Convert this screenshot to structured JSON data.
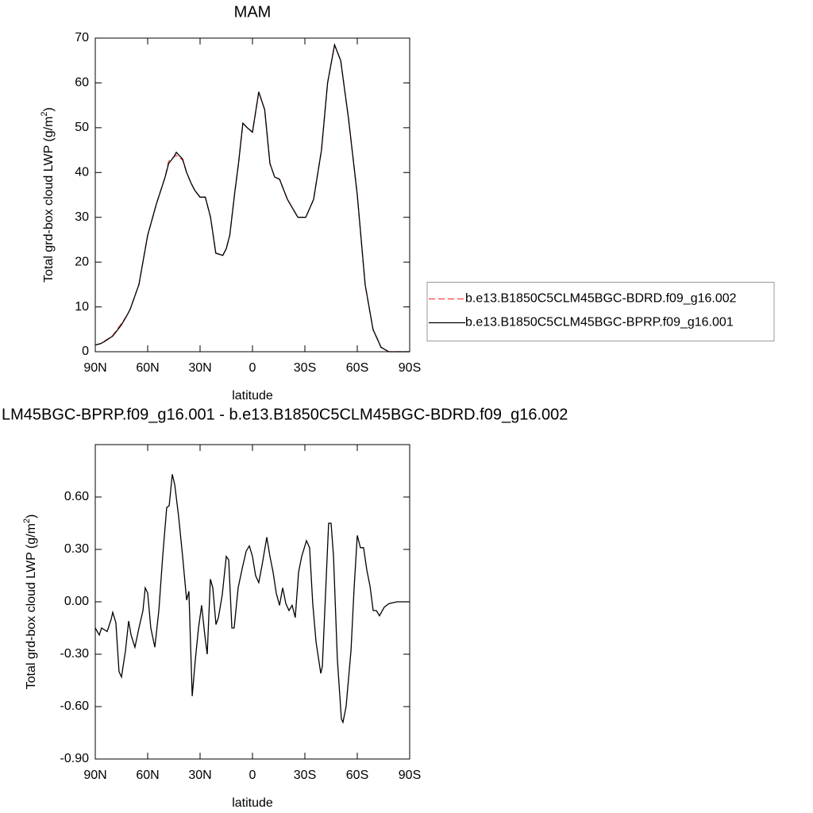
{
  "chart_data": [
    {
      "type": "line",
      "title": "MAM",
      "xlabel": "latitude",
      "ylabel": "Total grd-box cloud LWP (g/m",
      "ylabel_sup": "2",
      "ylabel_end": ")",
      "xlim": [
        90,
        -90
      ],
      "ylim": [
        0,
        70
      ],
      "xticks": [
        {
          "value": 90,
          "label": "90N"
        },
        {
          "value": 60,
          "label": "60N"
        },
        {
          "value": 30,
          "label": "30N"
        },
        0,
        {
          "value": -30,
          "label": "30S"
        },
        {
          "value": -60,
          "label": "60S"
        },
        {
          "value": -90,
          "label": "90S"
        }
      ],
      "yticks": [
        0,
        10,
        20,
        30,
        40,
        50,
        60,
        70
      ],
      "legend": "right",
      "x": [
        90,
        87,
        85,
        80,
        75,
        72,
        70,
        65,
        60,
        55,
        50,
        48,
        45,
        43.6,
        40,
        37.7,
        35,
        33,
        30,
        27,
        24,
        21,
        17,
        15,
        13,
        10,
        8,
        5.5,
        3,
        0,
        -3.6,
        -7,
        -10,
        -12.7,
        -15.5,
        -20,
        -26,
        -30.5,
        -35,
        -39.5,
        -43,
        -47,
        -50.5,
        -55,
        -60,
        -64.5,
        -69,
        -73.6,
        -78,
        -82,
        -90
      ],
      "series": [
        {
          "name": "b.e13.B1850C5CLM45BGC-BDRD.f09_g16.002",
          "color": "#ff4040",
          "dash": "dashed",
          "values": [
            1.5,
            1.8,
            2.3,
            3.6,
            6.3,
            8,
            9.5,
            15,
            26,
            33,
            39,
            42.5,
            43.5,
            43.8,
            42.8,
            40,
            37.5,
            36,
            34.5,
            34.5,
            30,
            22,
            21.5,
            23,
            26,
            36,
            42,
            51,
            50,
            49,
            58,
            54,
            42,
            39,
            38.5,
            34,
            30,
            30,
            34,
            45,
            60,
            68.5,
            65,
            52,
            35,
            15,
            5,
            1,
            0,
            0,
            0
          ]
        },
        {
          "name": "b.e13.B1850C5CLM45BGC-BPRP.f09_g16.001",
          "color": "#000000",
          "dash": "solid",
          "values": [
            1.5,
            1.8,
            2.2,
            3.5,
            6,
            8,
            9.5,
            15,
            26,
            33,
            39,
            42,
            43.5,
            44.5,
            43,
            40,
            37.5,
            36,
            34.5,
            34.5,
            30,
            22,
            21.5,
            23,
            26,
            36,
            42,
            51,
            50,
            49,
            58,
            54,
            42,
            39,
            38.5,
            34,
            30,
            30,
            34,
            45,
            60,
            68.5,
            65,
            52,
            35,
            15,
            5,
            1,
            0,
            0,
            0
          ]
        }
      ]
    },
    {
      "type": "line",
      "title": "LM45BGC-BPRP.f09_g16.001 - b.e13.B1850C5CLM45BGC-BDRD.f09_g16.002",
      "xlabel": "latitude",
      "ylabel": "Total grd-box cloud LWP (g/m",
      "ylabel_sup": "2",
      "ylabel_end": ")",
      "xlim": [
        90,
        -90
      ],
      "ylim": [
        -0.9,
        0.9
      ],
      "xticks": [
        {
          "value": 90,
          "label": "90N"
        },
        {
          "value": 60,
          "label": "60N"
        },
        {
          "value": 30,
          "label": "30N"
        },
        0,
        {
          "value": -30,
          "label": "30S"
        },
        {
          "value": -60,
          "label": "60S"
        },
        {
          "value": -90,
          "label": "90S"
        }
      ],
      "yticks": [
        {
          "value": -0.9,
          "label": "-0.90"
        },
        {
          "value": -0.6,
          "label": "-0.60"
        },
        {
          "value": -0.3,
          "label": "-0.30"
        },
        {
          "value": 0,
          "label": "0.00"
        },
        {
          "value": 0.3,
          "label": "0.30"
        },
        {
          "value": 0.6,
          "label": "0.60"
        }
      ],
      "x": [
        90,
        87.7,
        86.4,
        83.2,
        80.9,
        80,
        78.2,
        76.4,
        75,
        72.7,
        70.9,
        69.5,
        67.3,
        65,
        62.7,
        61.4,
        60,
        58.2,
        55.9,
        53.6,
        51.4,
        49.1,
        47.7,
        45.9,
        44.5,
        42.3,
        40,
        37.7,
        36.4,
        34.5,
        32.7,
        30.9,
        29.1,
        27.3,
        25.9,
        24.1,
        22.7,
        20.9,
        19.5,
        17.3,
        15,
        13.6,
        11.8,
        10.5,
        8.2,
        5.9,
        3.6,
        1.8,
        0,
        -1.8,
        -3.6,
        -5.5,
        -8.2,
        -10,
        -11.8,
        -13.6,
        -15.5,
        -17.3,
        -19.1,
        -20.9,
        -22.7,
        -24.5,
        -26.4,
        -28.2,
        -30.9,
        -32.7,
        -34.5,
        -36.4,
        -39.1,
        -40,
        -41.8,
        -43.6,
        -45,
        -46.4,
        -48.6,
        -50.9,
        -51.8,
        -53.6,
        -56.4,
        -58.2,
        -60,
        -61.8,
        -63.6,
        -65.5,
        -67.3,
        -69.1,
        -70.9,
        -72.7,
        -75.5,
        -78.2,
        -82.7,
        -90
      ],
      "series": [
        {
          "color": "#000000",
          "dash": "solid",
          "values": [
            -0.15,
            -0.19,
            -0.15,
            -0.17,
            -0.1,
            -0.06,
            -0.12,
            -0.4,
            -0.43,
            -0.28,
            -0.11,
            -0.19,
            -0.26,
            -0.15,
            -0.05,
            0.08,
            0.05,
            -0.15,
            -0.26,
            -0.05,
            0.26,
            0.54,
            0.55,
            0.73,
            0.67,
            0.49,
            0.26,
            0.01,
            0.06,
            -0.54,
            -0.33,
            -0.15,
            -0.02,
            -0.19,
            -0.3,
            0.13,
            0.08,
            -0.13,
            -0.09,
            0.04,
            0.26,
            0.24,
            -0.15,
            -0.15,
            0.08,
            0.19,
            0.29,
            0.32,
            0.26,
            0.15,
            0.11,
            0.21,
            0.37,
            0.26,
            0.17,
            0.05,
            -0.02,
            0.08,
            -0.01,
            -0.05,
            -0.02,
            -0.09,
            0.17,
            0.26,
            0.35,
            0.31,
            -0.01,
            -0.23,
            -0.41,
            -0.37,
            0.04,
            0.45,
            0.45,
            0.26,
            -0.33,
            -0.67,
            -0.69,
            -0.6,
            -0.28,
            0.08,
            0.38,
            0.31,
            0.31,
            0.18,
            0.09,
            -0.05,
            -0.05,
            -0.08,
            -0.03,
            -0.01,
            0,
            0
          ]
        }
      ]
    }
  ]
}
